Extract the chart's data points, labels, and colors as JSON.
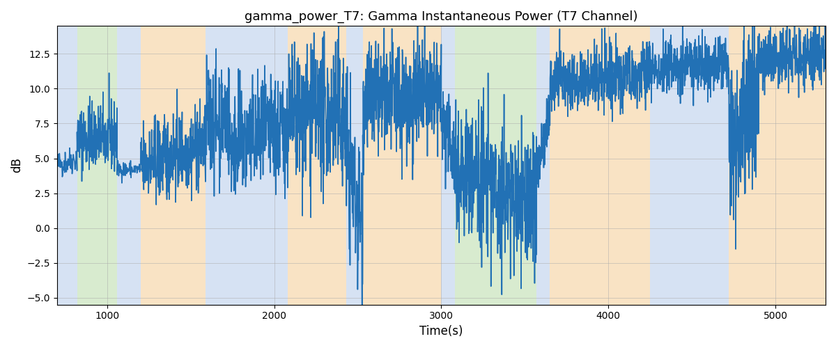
{
  "title": "gamma_power_T7: Gamma Instantaneous Power (T7 Channel)",
  "xlabel": "Time(s)",
  "ylabel": "dB",
  "xlim": [
    700,
    5300
  ],
  "ylim": [
    -5.5,
    14.5
  ],
  "yticks": [
    -5.0,
    -2.5,
    0.0,
    2.5,
    5.0,
    7.5,
    10.0,
    12.5
  ],
  "xticks": [
    1000,
    2000,
    3000,
    4000,
    5000
  ],
  "line_color": "#2271b5",
  "line_width": 1.2,
  "bg_color": "#ffffff",
  "grid_color": "#aaaaaa",
  "bands": [
    {
      "xmin": 700,
      "xmax": 820,
      "color": "#aec6e8",
      "alpha": 0.5
    },
    {
      "xmin": 820,
      "xmax": 1060,
      "color": "#b2d9a0",
      "alpha": 0.5
    },
    {
      "xmin": 1060,
      "xmax": 1200,
      "color": "#aec6e8",
      "alpha": 0.5
    },
    {
      "xmin": 1200,
      "xmax": 1590,
      "color": "#f5c98a",
      "alpha": 0.5
    },
    {
      "xmin": 1590,
      "xmax": 1730,
      "color": "#aec6e8",
      "alpha": 0.5
    },
    {
      "xmin": 1730,
      "xmax": 2080,
      "color": "#aec6e8",
      "alpha": 0.5
    },
    {
      "xmin": 2080,
      "xmax": 2430,
      "color": "#f5c98a",
      "alpha": 0.5
    },
    {
      "xmin": 2430,
      "xmax": 2530,
      "color": "#aec6e8",
      "alpha": 0.5
    },
    {
      "xmin": 2530,
      "xmax": 3000,
      "color": "#f5c98a",
      "alpha": 0.5
    },
    {
      "xmin": 3000,
      "xmax": 3080,
      "color": "#aec6e8",
      "alpha": 0.5
    },
    {
      "xmin": 3080,
      "xmax": 3570,
      "color": "#b2d9a0",
      "alpha": 0.5
    },
    {
      "xmin": 3570,
      "xmax": 3650,
      "color": "#aec6e8",
      "alpha": 0.5
    },
    {
      "xmin": 3650,
      "xmax": 4250,
      "color": "#f5c98a",
      "alpha": 0.5
    },
    {
      "xmin": 4250,
      "xmax": 4720,
      "color": "#aec6e8",
      "alpha": 0.5
    },
    {
      "xmin": 4720,
      "xmax": 4900,
      "color": "#f5c98a",
      "alpha": 0.5
    },
    {
      "xmin": 4900,
      "xmax": 5300,
      "color": "#f5c98a",
      "alpha": 0.5
    }
  ],
  "segments": [
    [
      700,
      820,
      50,
      4.5,
      0.5,
      0.5
    ],
    [
      820,
      1060,
      200,
      6.5,
      1.2,
      0.0
    ],
    [
      1060,
      1200,
      60,
      4.2,
      0.3,
      0.0
    ],
    [
      1200,
      1590,
      300,
      4.5,
      1.5,
      1.5
    ],
    [
      1590,
      1730,
      100,
      7.5,
      2.0,
      0.5
    ],
    [
      1730,
      2080,
      280,
      6.0,
      2.0,
      1.0
    ],
    [
      2080,
      2430,
      280,
      8.0,
      2.5,
      0.0
    ],
    [
      2430,
      2530,
      80,
      5.0,
      3.0,
      -5.0
    ],
    [
      2530,
      3000,
      380,
      9.0,
      2.0,
      0.5
    ],
    [
      3000,
      3080,
      64,
      7.5,
      1.5,
      -2.0
    ],
    [
      3080,
      3570,
      400,
      4.5,
      2.5,
      -3.0
    ],
    [
      3570,
      3650,
      64,
      3.5,
      1.0,
      5.0
    ],
    [
      3650,
      4250,
      480,
      10.5,
      1.2,
      0.5
    ],
    [
      4250,
      4720,
      380,
      11.5,
      1.0,
      0.5
    ],
    [
      4720,
      4900,
      145,
      6.5,
      3.0,
      3.0
    ],
    [
      4900,
      5300,
      320,
      12.0,
      1.0,
      0.5
    ]
  ],
  "seed": 42
}
